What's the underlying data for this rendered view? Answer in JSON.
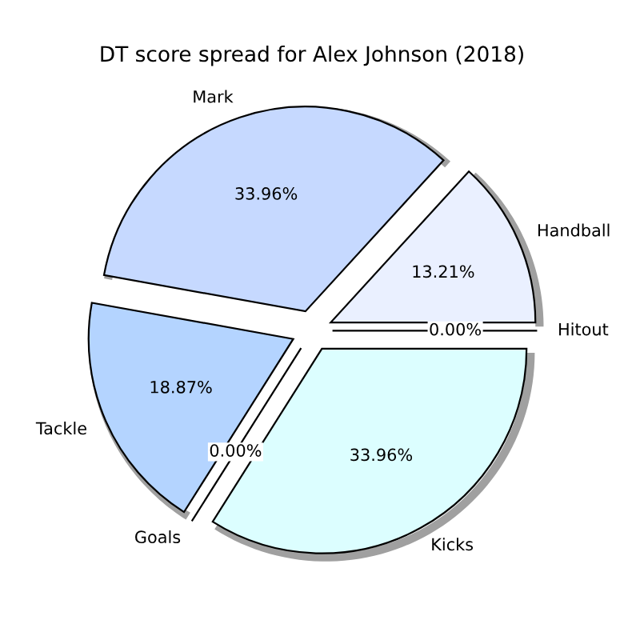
{
  "chart_data": {
    "type": "pie",
    "title": "DT score spread for Alex Johnson (2018)",
    "categories": [
      "Handball",
      "Mark",
      "Tackle",
      "Goals",
      "Kicks",
      "Hitout"
    ],
    "values": [
      13.21,
      33.96,
      18.87,
      0,
      33.96,
      0
    ],
    "colors": [
      "#eaf0ff",
      "#c6d9ff",
      "#b4d4ff",
      "#c8e0ff",
      "#dcfeff",
      "#f0f4ff"
    ],
    "value_labels": [
      "13.21%",
      "33.96%",
      "18.87%",
      "0.00%",
      "33.96%",
      "0.00%"
    ],
    "legend": false
  }
}
